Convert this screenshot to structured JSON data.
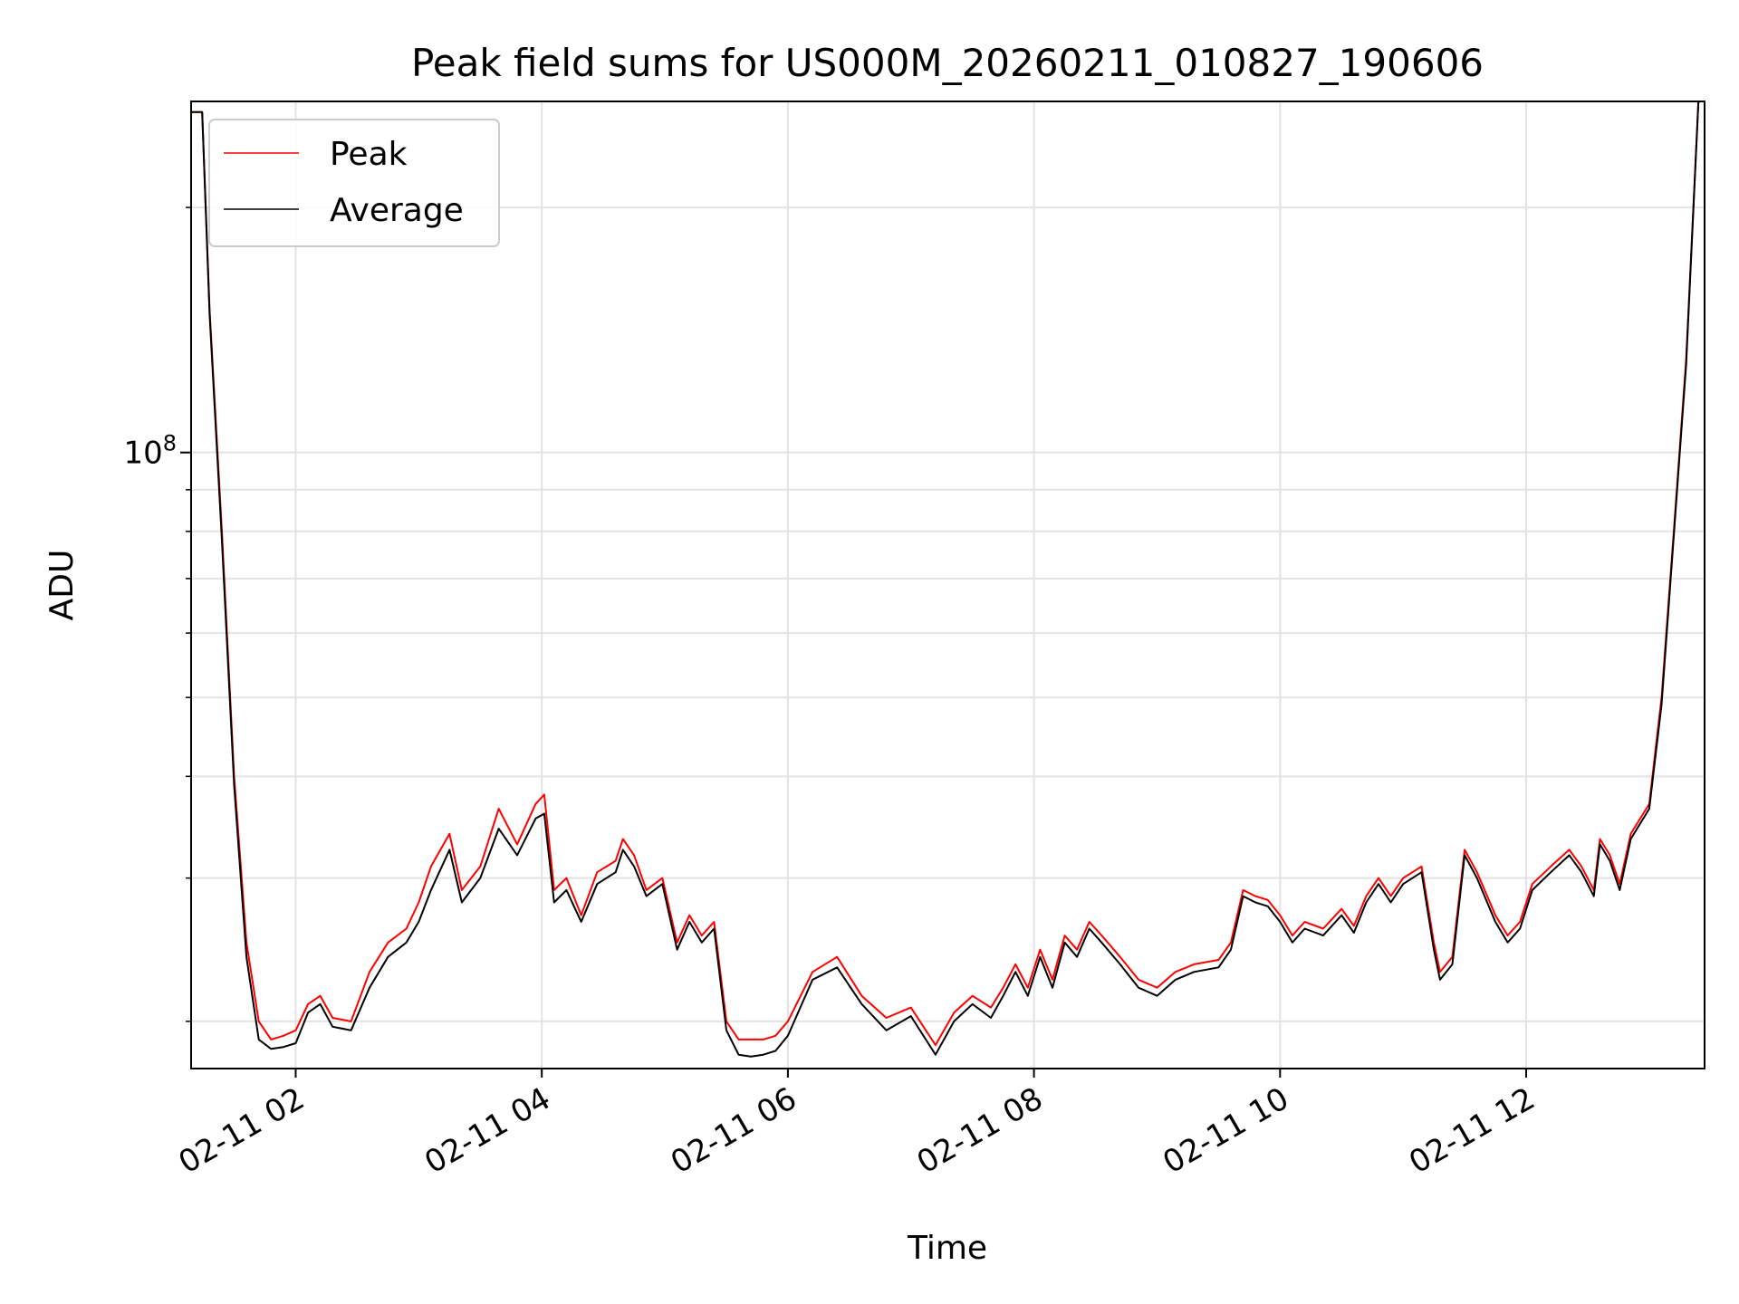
{
  "chart_data": {
    "type": "line",
    "title": "Peak field sums for US000M_20260211_010827_190606",
    "xlabel": "Time",
    "ylabel": "ADU",
    "y_scale": "log",
    "ylim": [
      17500000,
      270000000
    ],
    "xlim": [
      1.15,
      13.45
    ],
    "grid": true,
    "legend_position": "upper-left",
    "x_ticks": [
      {
        "value": 2,
        "label": "02-11 02"
      },
      {
        "value": 4,
        "label": "02-11 04"
      },
      {
        "value": 6,
        "label": "02-11 06"
      },
      {
        "value": 8,
        "label": "02-11 08"
      },
      {
        "value": 10,
        "label": "02-11 10"
      },
      {
        "value": 12,
        "label": "02-11 12"
      }
    ],
    "y_tick_major": {
      "value": 100000000,
      "label_base": "10",
      "label_exp": "8"
    },
    "y_minor_ticks": [
      20000000,
      30000000,
      40000000,
      50000000,
      60000000,
      70000000,
      80000000,
      90000000,
      200000000
    ],
    "series": [
      {
        "name": "Peak",
        "color": "#ff0000",
        "x": [
          1.15,
          1.24,
          1.3,
          1.4,
          1.5,
          1.6,
          1.7,
          1.8,
          1.9,
          2.0,
          2.1,
          2.2,
          2.3,
          2.45,
          2.6,
          2.75,
          2.9,
          3.0,
          3.1,
          3.25,
          3.35,
          3.5,
          3.65,
          3.8,
          3.95,
          4.02,
          4.1,
          4.2,
          4.32,
          4.45,
          4.6,
          4.66,
          4.75,
          4.85,
          4.98,
          5.1,
          5.2,
          5.3,
          5.4,
          5.5,
          5.6,
          5.7,
          5.8,
          5.9,
          6.0,
          6.2,
          6.4,
          6.6,
          6.8,
          7.0,
          7.2,
          7.35,
          7.5,
          7.65,
          7.75,
          7.85,
          7.95,
          8.05,
          8.15,
          8.25,
          8.35,
          8.45,
          8.55,
          8.7,
          8.85,
          9.0,
          9.15,
          9.3,
          9.5,
          9.6,
          9.7,
          9.8,
          9.9,
          10.0,
          10.1,
          10.2,
          10.35,
          10.5,
          10.6,
          10.7,
          10.8,
          10.9,
          11.0,
          11.15,
          11.25,
          11.3,
          11.4,
          11.5,
          11.6,
          11.75,
          11.85,
          11.95,
          12.05,
          12.2,
          12.35,
          12.45,
          12.55,
          12.6,
          12.68,
          12.76,
          12.85,
          13.0,
          13.1,
          13.2,
          13.3,
          13.4,
          13.45
        ],
        "values": [
          262000000,
          262000000,
          150000000,
          80000000,
          40000000,
          25000000,
          20000000,
          19000000,
          19200000,
          19500000,
          21000000,
          21500000,
          20200000,
          20000000,
          23000000,
          25000000,
          26000000,
          28000000,
          31000000,
          34000000,
          29000000,
          31000000,
          36500000,
          33000000,
          37000000,
          38000000,
          29000000,
          30000000,
          27000000,
          30500000,
          31500000,
          33500000,
          32000000,
          29000000,
          30000000,
          25000000,
          27000000,
          25500000,
          26500000,
          20000000,
          19000000,
          19000000,
          19000000,
          19200000,
          20000000,
          23000000,
          24000000,
          21500000,
          20200000,
          20800000,
          18700000,
          20500000,
          21500000,
          20800000,
          22000000,
          23500000,
          22000000,
          24500000,
          22500000,
          25500000,
          24500000,
          26500000,
          25500000,
          24000000,
          22500000,
          22000000,
          23000000,
          23500000,
          23800000,
          25000000,
          29000000,
          28500000,
          28200000,
          27000000,
          25500000,
          26500000,
          26000000,
          27500000,
          26200000,
          28500000,
          30000000,
          28500000,
          30000000,
          31000000,
          25000000,
          23000000,
          24000000,
          32500000,
          30500000,
          27000000,
          25500000,
          26500000,
          29500000,
          31000000,
          32500000,
          31000000,
          29000000,
          33500000,
          32000000,
          29500000,
          34000000,
          37000000,
          50000000,
          80000000,
          130000000,
          270000000,
          270000000
        ]
      },
      {
        "name": "Average",
        "color": "#000000",
        "x": [
          1.15,
          1.24,
          1.3,
          1.4,
          1.5,
          1.6,
          1.7,
          1.8,
          1.9,
          2.0,
          2.1,
          2.2,
          2.3,
          2.45,
          2.6,
          2.75,
          2.9,
          3.0,
          3.1,
          3.25,
          3.35,
          3.5,
          3.65,
          3.8,
          3.95,
          4.02,
          4.1,
          4.2,
          4.32,
          4.45,
          4.6,
          4.66,
          4.75,
          4.85,
          4.98,
          5.1,
          5.2,
          5.3,
          5.4,
          5.5,
          5.6,
          5.7,
          5.8,
          5.9,
          6.0,
          6.2,
          6.4,
          6.6,
          6.8,
          7.0,
          7.2,
          7.35,
          7.5,
          7.65,
          7.75,
          7.85,
          7.95,
          8.05,
          8.15,
          8.25,
          8.35,
          8.45,
          8.55,
          8.7,
          8.85,
          9.0,
          9.15,
          9.3,
          9.5,
          9.6,
          9.7,
          9.8,
          9.9,
          10.0,
          10.1,
          10.2,
          10.35,
          10.5,
          10.6,
          10.7,
          10.8,
          10.9,
          11.0,
          11.15,
          11.25,
          11.3,
          11.4,
          11.5,
          11.6,
          11.75,
          11.85,
          11.95,
          12.05,
          12.2,
          12.35,
          12.45,
          12.55,
          12.6,
          12.68,
          12.76,
          12.85,
          13.0,
          13.1,
          13.2,
          13.3,
          13.4,
          13.45
        ],
        "values": [
          262000000,
          262000000,
          148000000,
          78000000,
          39000000,
          24000000,
          19000000,
          18500000,
          18600000,
          18800000,
          20500000,
          21000000,
          19700000,
          19500000,
          22000000,
          24000000,
          25000000,
          26500000,
          29000000,
          32500000,
          28000000,
          30000000,
          34500000,
          32000000,
          35500000,
          36000000,
          28000000,
          29000000,
          26500000,
          29500000,
          30500000,
          32500000,
          31000000,
          28500000,
          29500000,
          24500000,
          26500000,
          25000000,
          26000000,
          19500000,
          18200000,
          18100000,
          18200000,
          18400000,
          19200000,
          22500000,
          23300000,
          21000000,
          19500000,
          20300000,
          18200000,
          20000000,
          21000000,
          20200000,
          21500000,
          23000000,
          21500000,
          24000000,
          22000000,
          25000000,
          24000000,
          26000000,
          25000000,
          23500000,
          22000000,
          21500000,
          22500000,
          23000000,
          23300000,
          24500000,
          28500000,
          28000000,
          27700000,
          26500000,
          25000000,
          26000000,
          25500000,
          27000000,
          25700000,
          28000000,
          29500000,
          28000000,
          29500000,
          30500000,
          24500000,
          22500000,
          23500000,
          32000000,
          30000000,
          26500000,
          25000000,
          26000000,
          29000000,
          30500000,
          32000000,
          30500000,
          28500000,
          33000000,
          31500000,
          29000000,
          33500000,
          36500000,
          49000000,
          79000000,
          128000000,
          270000000,
          270000000
        ]
      }
    ]
  }
}
